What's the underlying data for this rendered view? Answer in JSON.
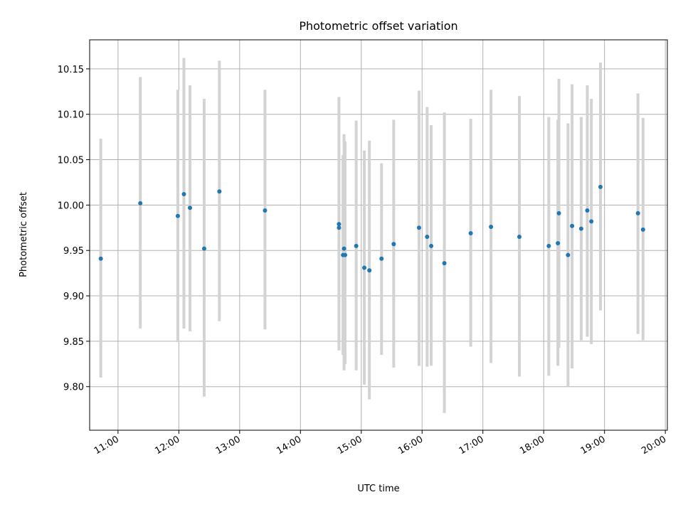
{
  "chart_data": {
    "type": "scatter",
    "title": "Photometric offset variation",
    "xlabel": "UTC time",
    "ylabel": "Photometric offset",
    "x_ticks": [
      "11:00",
      "12:00",
      "13:00",
      "14:00",
      "15:00",
      "16:00",
      "17:00",
      "18:00",
      "19:00",
      "20:00"
    ],
    "y_ticks": [
      "9.80",
      "9.85",
      "9.90",
      "9.95",
      "10.00",
      "10.05",
      "10.10",
      "10.15"
    ],
    "xlim": [
      "10:32",
      "20:02"
    ],
    "ylim": [
      9.752,
      10.182
    ],
    "grid": true,
    "colors": {
      "marker": "#1f77b4",
      "errorbar": "#d3d3d3"
    },
    "series": [
      {
        "points": [
          {
            "x": "10:43",
            "y": 9.941,
            "ylo": 9.81,
            "yhi": 10.073
          },
          {
            "x": "11:22",
            "y": 10.002,
            "ylo": 9.864,
            "yhi": 10.141
          },
          {
            "x": "11:59",
            "y": 9.988,
            "ylo": 9.849,
            "yhi": 10.127
          },
          {
            "x": "12:05",
            "y": 10.012,
            "ylo": 9.864,
            "yhi": 10.162
          },
          {
            "x": "12:11",
            "y": 9.997,
            "ylo": 9.861,
            "yhi": 10.132
          },
          {
            "x": "12:25",
            "y": 9.952,
            "ylo": 9.789,
            "yhi": 10.117
          },
          {
            "x": "12:40",
            "y": 10.015,
            "ylo": 9.872,
            "yhi": 10.159
          },
          {
            "x": "13:25",
            "y": 9.994,
            "ylo": 9.863,
            "yhi": 10.127
          },
          {
            "x": "14:38",
            "y": 9.979,
            "ylo": 9.84,
            "yhi": 10.119
          },
          {
            "x": "14:38",
            "y": 9.975,
            "ylo": 9.845,
            "yhi": 10.06
          },
          {
            "x": "14:42",
            "y": 9.945,
            "ylo": 9.835,
            "yhi": 10.055
          },
          {
            "x": "14:43",
            "y": 9.952,
            "ylo": 9.818,
            "yhi": 10.078
          },
          {
            "x": "14:44",
            "y": 9.945,
            "ylo": 9.825,
            "yhi": 10.07
          },
          {
            "x": "14:55",
            "y": 9.955,
            "ylo": 9.818,
            "yhi": 10.093
          },
          {
            "x": "15:03",
            "y": 9.931,
            "ylo": 9.802,
            "yhi": 10.06
          },
          {
            "x": "15:08",
            "y": 9.928,
            "ylo": 9.786,
            "yhi": 10.071
          },
          {
            "x": "15:20",
            "y": 9.941,
            "ylo": 9.835,
            "yhi": 10.046
          },
          {
            "x": "15:32",
            "y": 9.957,
            "ylo": 9.821,
            "yhi": 10.094
          },
          {
            "x": "15:57",
            "y": 9.975,
            "ylo": 9.823,
            "yhi": 10.126
          },
          {
            "x": "16:05",
            "y": 9.965,
            "ylo": 9.822,
            "yhi": 10.108
          },
          {
            "x": "16:09",
            "y": 9.955,
            "ylo": 9.823,
            "yhi": 10.088
          },
          {
            "x": "16:22",
            "y": 9.936,
            "ylo": 9.771,
            "yhi": 10.102
          },
          {
            "x": "16:48",
            "y": 9.969,
            "ylo": 9.844,
            "yhi": 10.095
          },
          {
            "x": "17:08",
            "y": 9.976,
            "ylo": 9.826,
            "yhi": 10.127
          },
          {
            "x": "17:36",
            "y": 9.965,
            "ylo": 9.811,
            "yhi": 10.12
          },
          {
            "x": "18:05",
            "y": 9.955,
            "ylo": 9.812,
            "yhi": 10.097
          },
          {
            "x": "18:14",
            "y": 9.958,
            "ylo": 9.823,
            "yhi": 10.094
          },
          {
            "x": "18:15",
            "y": 9.991,
            "ylo": 9.843,
            "yhi": 10.139
          },
          {
            "x": "18:24",
            "y": 9.945,
            "ylo": 9.8,
            "yhi": 10.09
          },
          {
            "x": "18:28",
            "y": 9.977,
            "ylo": 9.82,
            "yhi": 10.133
          },
          {
            "x": "18:37",
            "y": 9.974,
            "ylo": 9.851,
            "yhi": 10.097
          },
          {
            "x": "18:43",
            "y": 9.994,
            "ylo": 9.855,
            "yhi": 10.132
          },
          {
            "x": "18:47",
            "y": 9.982,
            "ylo": 9.847,
            "yhi": 10.117
          },
          {
            "x": "18:56",
            "y": 10.02,
            "ylo": 9.884,
            "yhi": 10.157
          },
          {
            "x": "19:33",
            "y": 9.991,
            "ylo": 9.858,
            "yhi": 10.123
          },
          {
            "x": "19:38",
            "y": 9.973,
            "ylo": 9.851,
            "yhi": 10.096
          }
        ]
      }
    ]
  }
}
